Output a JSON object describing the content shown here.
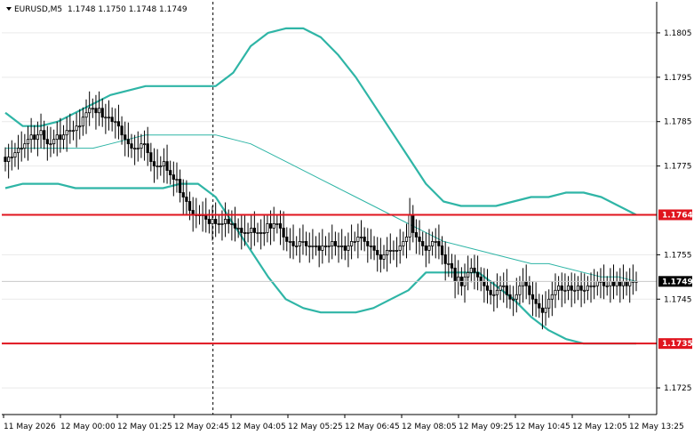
{
  "header": {
    "symbol_label": "EURUSD,M5",
    "ohlc": "1.1748 1.1750 1.1748 1.1749"
  },
  "colors": {
    "background": "#ffffff",
    "candle": "#000000",
    "bands": "#2fb5a6",
    "level_line": "#e0141e",
    "label_bg_level": "#e0141e",
    "label_bg_current": "#000000",
    "grid": "#e9e9e9"
  },
  "chart_data": {
    "type": "candlestick",
    "symbol": "EURUSD",
    "timeframe": "M5",
    "ylim": [
      1.1719,
      1.1812
    ],
    "y_ticks": [
      "1.1805",
      "1.1795",
      "1.1785",
      "1.1775",
      "1.1755",
      "1.1745",
      "1.1725"
    ],
    "x_ticks": [
      "11 May 2026",
      "12 May 00:00",
      "12 May 01:25",
      "12 May 02:45",
      "12 May 04:05",
      "12 May 05:25",
      "12 May 06:45",
      "12 May 08:05",
      "12 May 09:25",
      "12 May 10:45",
      "12 May 12:05",
      "12 May 13:25"
    ],
    "levels": [
      {
        "label": "1.1764",
        "value": 1.1764
      },
      {
        "label": "1.1735",
        "value": 1.1735
      }
    ],
    "current_price": {
      "label": "1.1749",
      "value": 1.1749
    },
    "period_separator_at": 65,
    "bollinger": {
      "x": [
        0,
        20,
        40,
        60,
        80,
        100,
        120,
        140,
        160,
        180,
        200,
        220,
        240,
        260,
        280,
        300,
        320,
        340,
        360,
        380,
        400,
        420,
        440,
        460,
        480,
        500,
        520,
        540,
        560,
        580,
        600,
        620,
        640,
        660,
        680,
        700,
        720
      ],
      "upper": [
        1.1787,
        1.1784,
        1.1784,
        1.1785,
        1.1787,
        1.1789,
        1.1791,
        1.1792,
        1.1793,
        1.1793,
        1.1793,
        1.1793,
        1.1793,
        1.1796,
        1.1802,
        1.1805,
        1.1806,
        1.1806,
        1.1804,
        1.18,
        1.1795,
        1.1789,
        1.1783,
        1.1777,
        1.1771,
        1.1767,
        1.1766,
        1.1766,
        1.1766,
        1.1767,
        1.1768,
        1.1768,
        1.1769,
        1.1769,
        1.1768,
        1.1766,
        1.1764
      ],
      "middle": [
        1.1779,
        1.1779,
        1.1779,
        1.1779,
        1.1779,
        1.1779,
        1.178,
        1.1781,
        1.1782,
        1.1782,
        1.1782,
        1.1782,
        1.1782,
        1.1781,
        1.178,
        1.1778,
        1.1776,
        1.1774,
        1.1772,
        1.177,
        1.1768,
        1.1766,
        1.1764,
        1.1762,
        1.176,
        1.1758,
        1.1757,
        1.1756,
        1.1755,
        1.1754,
        1.1753,
        1.1753,
        1.1752,
        1.1751,
        1.175,
        1.175,
        1.1749
      ],
      "lower": [
        1.177,
        1.1771,
        1.1771,
        1.1771,
        1.177,
        1.177,
        1.177,
        1.177,
        1.177,
        1.177,
        1.1771,
        1.1771,
        1.1768,
        1.1762,
        1.1756,
        1.175,
        1.1745,
        1.1743,
        1.1742,
        1.1742,
        1.1742,
        1.1743,
        1.1745,
        1.1747,
        1.1751,
        1.1751,
        1.1751,
        1.1751,
        1.1748,
        1.1745,
        1.1741,
        1.1738,
        1.1736,
        1.1735,
        1.1735,
        1.1735,
        1.1735
      ]
    },
    "closes": [
      1.1776,
      1.1777,
      1.1777,
      1.1778,
      1.1779,
      1.1779,
      1.178,
      1.1781,
      1.1782,
      1.1781,
      1.1782,
      1.1783,
      1.1781,
      1.178,
      1.178,
      1.1781,
      1.1782,
      1.1781,
      1.1782,
      1.1783,
      1.1783,
      1.1783,
      1.1784,
      1.1784,
      1.1786,
      1.1787,
      1.1788,
      1.1788,
      1.1787,
      1.1788,
      1.1786,
      1.1786,
      1.1786,
      1.1785,
      1.1785,
      1.1784,
      1.1782,
      1.1781,
      1.178,
      1.1779,
      1.1779,
      1.1779,
      1.178,
      1.178,
      1.1778,
      1.1776,
      1.1775,
      1.1775,
      1.1775,
      1.1776,
      1.1774,
      1.1773,
      1.1772,
      1.1772,
      1.1769,
      1.1768,
      1.1767,
      1.1765,
      1.1764,
      1.1764,
      1.1764,
      1.1764,
      1.1763,
      1.1762,
      1.1763,
      1.1762,
      1.1762,
      1.1762,
      1.1763,
      1.1762,
      1.1762,
      1.1761,
      1.1761,
      1.176,
      1.176,
      1.176,
      1.1761,
      1.176,
      1.176,
      1.176,
      1.176,
      1.1762,
      1.1761,
      1.1762,
      1.1762,
      1.1761,
      1.1759,
      1.1758,
      1.1758,
      1.1757,
      1.1757,
      1.1758,
      1.1758,
      1.1757,
      1.1757,
      1.1757,
      1.1757,
      1.1756,
      1.1757,
      1.1757,
      1.1757,
      1.1758,
      1.1757,
      1.1757,
      1.1757,
      1.1756,
      1.1757,
      1.1758,
      1.1758,
      1.1759,
      1.1759,
      1.1758,
      1.1757,
      1.1757,
      1.1756,
      1.1755,
      1.1754,
      1.1755,
      1.1756,
      1.1756,
      1.1756,
      1.1756,
      1.1757,
      1.1758,
      1.1759,
      1.1764,
      1.176,
      1.1759,
      1.1758,
      1.1757,
      1.1756,
      1.1757,
      1.1758,
      1.1758,
      1.1757,
      1.1755,
      1.1753,
      1.1753,
      1.1752,
      1.1749,
      1.175,
      1.1748,
      1.175,
      1.1751,
      1.1752,
      1.1751,
      1.175,
      1.1749,
      1.1748,
      1.1747,
      1.1746,
      1.1746,
      1.1747,
      1.1748,
      1.1748,
      1.1746,
      1.1745,
      1.1745,
      1.1746,
      1.1748,
      1.1749,
      1.1748,
      1.1746,
      1.1745,
      1.1744,
      1.1743,
      1.1742,
      1.1743,
      1.1745,
      1.1746,
      1.1747,
      1.1748,
      1.1747,
      1.1747,
      1.1748,
      1.1747,
      1.1747,
      1.1748,
      1.1747,
      1.1747,
      1.1748,
      1.1748,
      1.1748,
      1.1749,
      1.1749,
      1.1748,
      1.1748,
      1.1749,
      1.1748,
      1.1749,
      1.1748,
      1.1749,
      1.1748,
      1.1749,
      1.1749,
      1.1749
    ]
  }
}
